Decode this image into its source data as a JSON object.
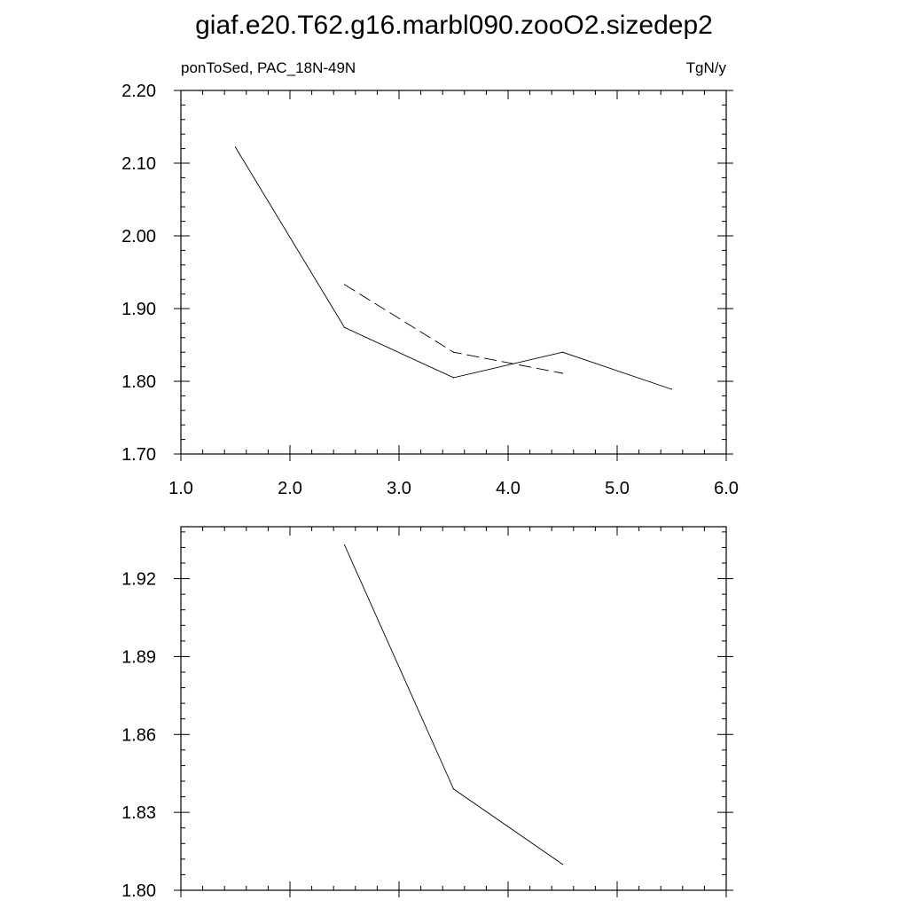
{
  "title": "giaf.e20.T62.g16.marbl090.zooO2.sizedep2",
  "chart_data": [
    {
      "type": "line",
      "left_label": "ponToSed, PAC_18N-49N",
      "right_label": "TgN/y",
      "xlim": [
        1.0,
        6.0
      ],
      "ylim": [
        1.7,
        2.2
      ],
      "x_ticks": [
        "1.0",
        "2.0",
        "3.0",
        "4.0",
        "5.0",
        "6.0"
      ],
      "y_ticks": [
        "1.70",
        "1.80",
        "1.90",
        "2.00",
        "2.10",
        "2.20"
      ],
      "series": [
        {
          "style": "solid",
          "x": [
            1.5,
            2.5,
            3.5,
            4.5,
            5.5
          ],
          "y": [
            2.122,
            1.874,
            1.805,
            1.84,
            1.789
          ]
        },
        {
          "style": "dashed",
          "x": [
            2.5,
            3.5,
            4.5
          ],
          "y": [
            1.933,
            1.84,
            1.811
          ]
        }
      ]
    },
    {
      "type": "line",
      "xlim": [
        1.0,
        6.0
      ],
      "ylim": [
        1.8,
        1.94
      ],
      "y_ticks": [
        "1.80",
        "1.83",
        "1.86",
        "1.89",
        "1.92"
      ],
      "series": [
        {
          "style": "solid",
          "x": [
            2.5,
            3.5,
            4.5
          ],
          "y": [
            1.933,
            1.839,
            1.81
          ]
        }
      ]
    }
  ]
}
